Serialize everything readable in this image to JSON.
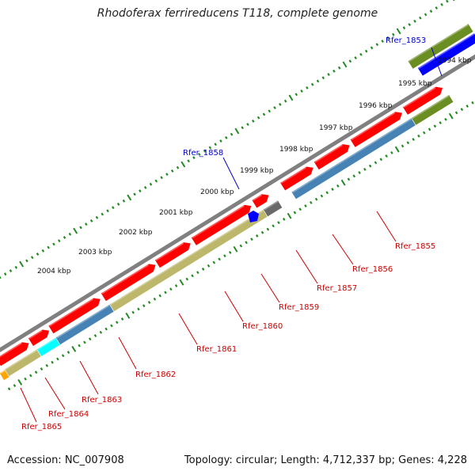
{
  "title": "Rhodoferax ferrireducens T118, complete genome",
  "footer": {
    "accession": "Accession: NC_007908",
    "topology": "Topology: circular; Length: 4,712,337 bp; Genes: 4,228"
  },
  "colors": {
    "backbone": "#808080",
    "cds_red": "#ff0000",
    "steelblue": "#4682b4",
    "khaki": "#bdb76b",
    "olive": "#6b8e23",
    "blue": "#0000ff",
    "cyan": "#00ffff",
    "gray": "#696969",
    "orange": "#ffa500",
    "tick_green": "#228b22",
    "label_red": "#cc0000",
    "label_blue": "#0000cc"
  },
  "kbp_labels": [
    "1994 kbp",
    "1995 kbp",
    "1996 kbp",
    "1997 kbp",
    "1998 kbp",
    "1999 kbp",
    "2000 kbp",
    "2001 kbp",
    "2002 kbp",
    "2003 kbp",
    "2004 kbp"
  ],
  "gene_labels": [
    "Rfer_1853",
    "Rfer_1855",
    "Rfer_1856",
    "Rfer_1857",
    "Rfer_1858",
    "Rfer_1859",
    "Rfer_1860",
    "Rfer_1861",
    "Rfer_1862",
    "Rfer_1863",
    "Rfer_1864",
    "Rfer_1865"
  ]
}
